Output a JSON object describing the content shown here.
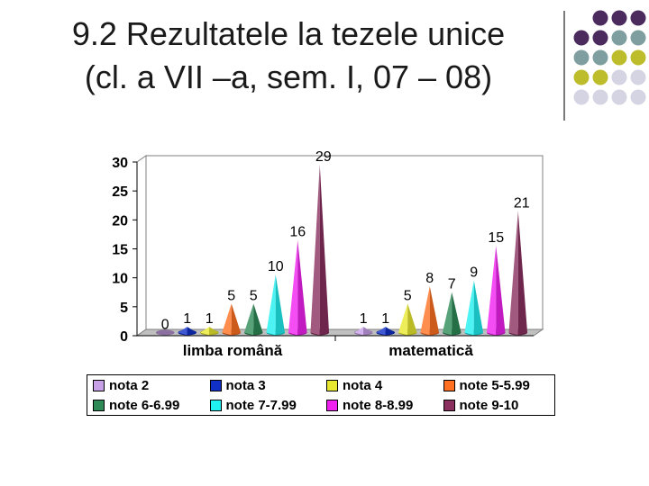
{
  "slide": {
    "title_line1": "9.2 Rezultatele la tezele unice",
    "title_line2": "(cl. a VII –a, sem. I, 07 – 08)",
    "decor_colors": [
      "#4b2a5e",
      "#7f9ea0",
      "#bdbd2c",
      "#d4d4e2"
    ]
  },
  "chart_data": {
    "type": "bar",
    "style": "3d-cones",
    "categories": [
      "limba română",
      "matematică"
    ],
    "ylim": [
      0,
      30
    ],
    "yticks": [
      0,
      5,
      10,
      15,
      20,
      25,
      30
    ],
    "grid": false,
    "legend_position": "bottom",
    "series": [
      {
        "name": "nota 2",
        "color": "#c8a0e8",
        "values": [
          0,
          1
        ]
      },
      {
        "name": "nota 3",
        "color": "#1030c8",
        "values": [
          1,
          1
        ]
      },
      {
        "name": "nota 4",
        "color": "#e8e830",
        "values": [
          1,
          5
        ]
      },
      {
        "name": "note 5-5.99",
        "color": "#ff7020",
        "values": [
          5,
          8
        ]
      },
      {
        "name": "note 6-6.99",
        "color": "#2e8b57",
        "values": [
          5,
          7
        ]
      },
      {
        "name": "note 7-7.99",
        "color": "#20f0f0",
        "values": [
          10,
          9
        ]
      },
      {
        "name": "note 8-8.99",
        "color": "#f020f0",
        "values": [
          16,
          15
        ]
      },
      {
        "name": "note 9-10",
        "color": "#8b2f5f",
        "values": [
          29,
          21
        ]
      }
    ]
  }
}
